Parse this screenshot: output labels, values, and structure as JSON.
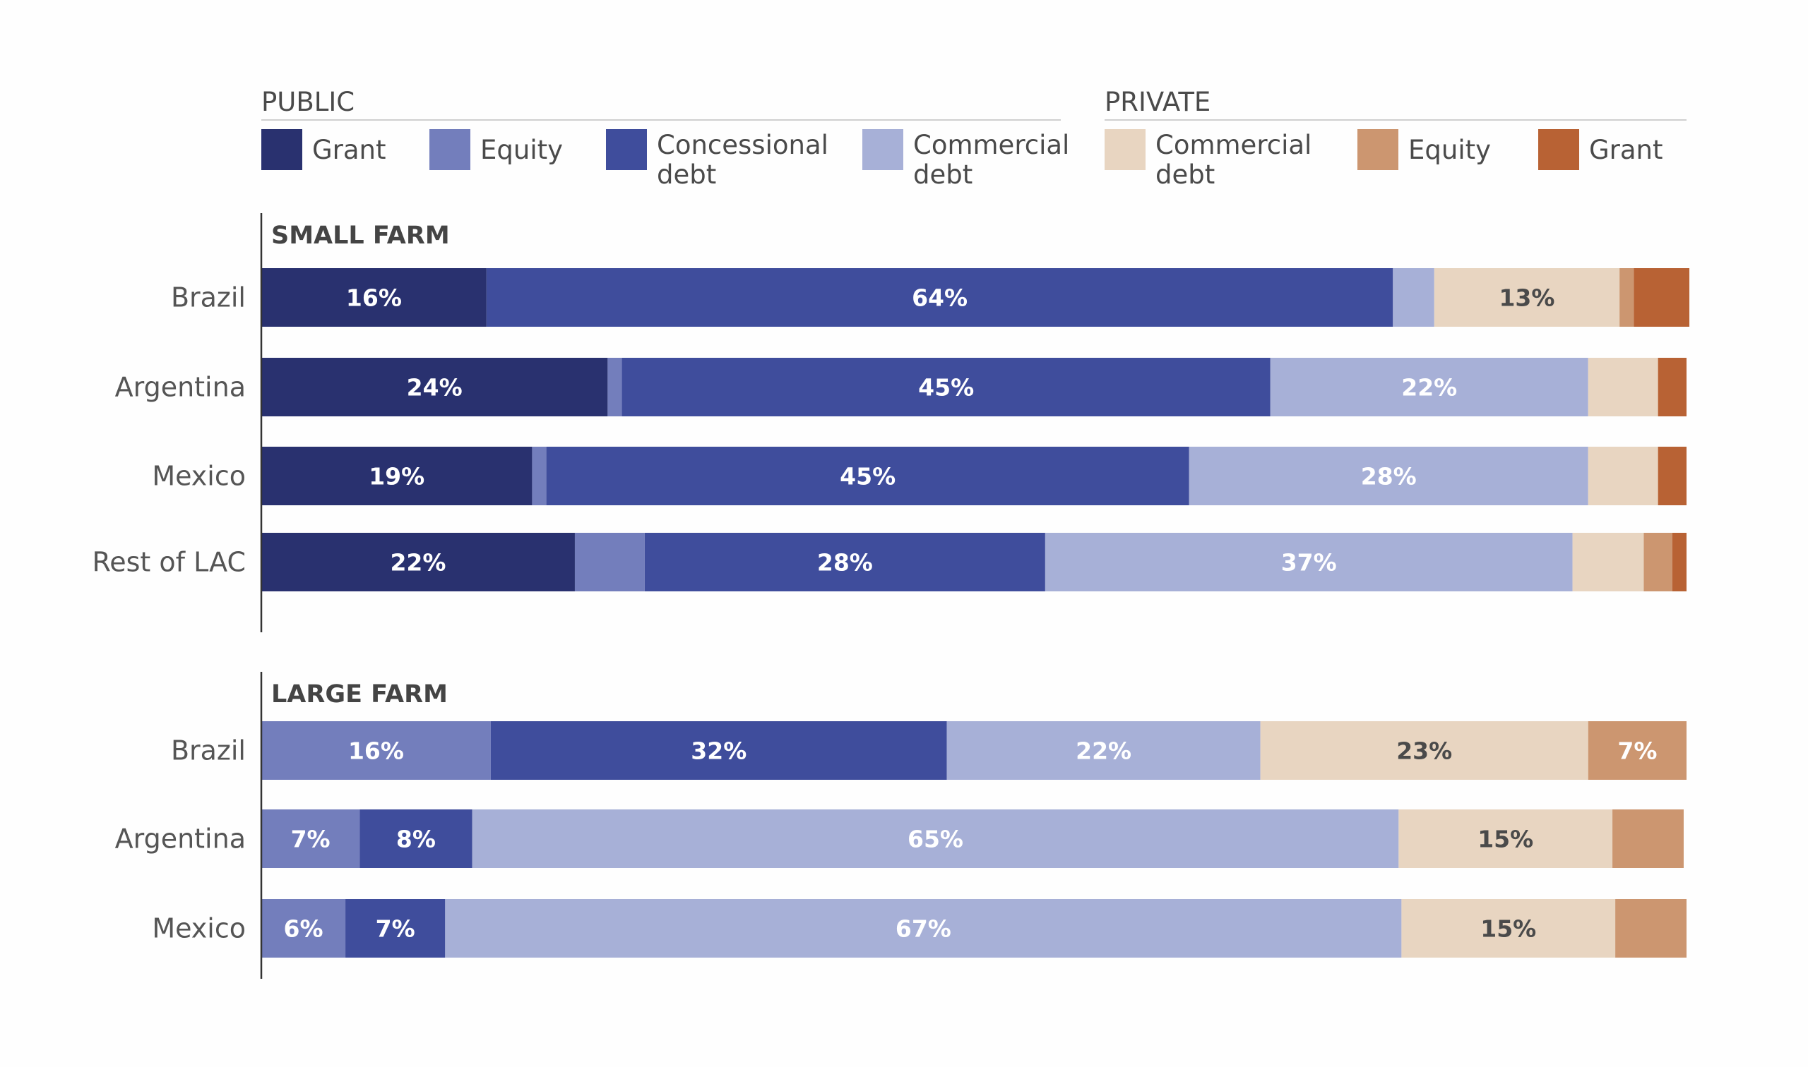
{
  "legend": {
    "groups": [
      {
        "label": "PUBLIC",
        "items": [
          {
            "label": [
              "Grant"
            ],
            "color": "#29316f"
          },
          {
            "label": [
              "Equity"
            ],
            "color": "#737ebc"
          },
          {
            "label": [
              "Concessional",
              "debt"
            ],
            "color": "#3f4d9c"
          },
          {
            "label": [
              "Commercial",
              "debt"
            ],
            "color": "#a7b0d7"
          }
        ]
      },
      {
        "label": "PRIVATE",
        "items": [
          {
            "label": [
              "Commercial",
              "debt"
            ],
            "color": "#e8d5c1"
          },
          {
            "label": [
              "Equity"
            ],
            "color": "#cc9670"
          },
          {
            "label": [
              "Grant"
            ],
            "color": "#b86234"
          }
        ]
      }
    ]
  },
  "chart_data": {
    "type": "bar",
    "orientation": "horizontal",
    "stacked": "100%",
    "series": [
      {
        "name": "Grant",
        "group": "PUBLIC",
        "color": "#29316f",
        "label_color": "#ffffff"
      },
      {
        "name": "Equity",
        "group": "PUBLIC",
        "color": "#737ebc",
        "label_color": "#ffffff"
      },
      {
        "name": "Concessional debt",
        "group": "PUBLIC",
        "color": "#3f4d9c",
        "label_color": "#ffffff"
      },
      {
        "name": "Commercial debt",
        "group": "PUBLIC",
        "color": "#a7b0d7",
        "label_color": "#ffffff"
      },
      {
        "name": "Commercial debt",
        "group": "PRIVATE",
        "color": "#e8d5c1",
        "label_color": "#4a4a4a"
      },
      {
        "name": "Equity",
        "group": "PRIVATE",
        "color": "#cc9670",
        "label_color": "#ffffff"
      },
      {
        "name": "Grant",
        "group": "PRIVATE",
        "color": "#b86234",
        "label_color": "#ffffff"
      }
    ],
    "panels": [
      {
        "title": "SMALL FARM",
        "rows": [
          {
            "category": "Brazil",
            "values": [
              15.8,
              0,
              63.6,
              2.9,
              13.0,
              1.0,
              3.9
            ],
            "labels": [
              "16%",
              "",
              "64%",
              "",
              "13%",
              "",
              ""
            ]
          },
          {
            "category": "Argentina",
            "values": [
              24.3,
              1.0,
              45.5,
              22.3,
              4.9,
              0,
              2.0
            ],
            "labels": [
              "24%",
              "",
              "45%",
              "22%",
              "",
              "",
              ""
            ]
          },
          {
            "category": "Mexico",
            "values": [
              19.0,
              1.0,
              45.1,
              28.0,
              4.9,
              0,
              2.0
            ],
            "labels": [
              "19%",
              "",
              "45%",
              "28%",
              "",
              "",
              ""
            ]
          },
          {
            "category": "Rest of LAC",
            "values": [
              22.0,
              4.9,
              28.1,
              37.0,
              5.0,
              2.0,
              1.0
            ],
            "labels": [
              "22%",
              "",
              "28%",
              "37%",
              "",
              "",
              ""
            ]
          }
        ]
      },
      {
        "title": "LARGE FARM",
        "rows": [
          {
            "category": "Brazil",
            "values": [
              0,
              16.1,
              32.0,
              22.0,
              23.0,
              6.9,
              0
            ],
            "labels": [
              "",
              "16%",
              "32%",
              "22%",
              "23%",
              "7%",
              ""
            ]
          },
          {
            "category": "Argentina",
            "values": [
              0,
              6.9,
              7.9,
              65.0,
              15.0,
              5.0,
              0
            ],
            "labels": [
              "",
              "7%",
              "8%",
              "65%",
              "15%",
              "",
              ""
            ]
          },
          {
            "category": "Mexico",
            "values": [
              0,
              5.9,
              7.0,
              67.1,
              15.0,
              5.0,
              0
            ],
            "labels": [
              "",
              "6%",
              "7%",
              "67%",
              "15%",
              "",
              ""
            ]
          }
        ]
      }
    ],
    "xlim": [
      0,
      100
    ],
    "grid": false,
    "legend_position": "top"
  }
}
